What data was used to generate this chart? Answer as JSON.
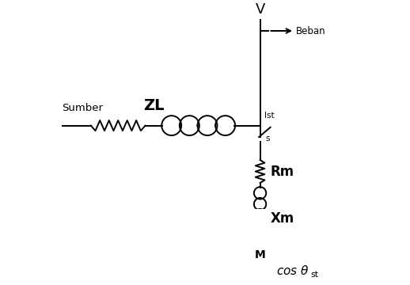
{
  "background_color": "#ffffff",
  "label_sumber": "Sumber",
  "label_ZL": "ZL",
  "label_V": "V",
  "label_Beban": "Beban",
  "label_Ist": "Ist",
  "label_S": "s",
  "label_Rm": "Rm",
  "label_Xm": "Xm",
  "label_M": "M"
}
